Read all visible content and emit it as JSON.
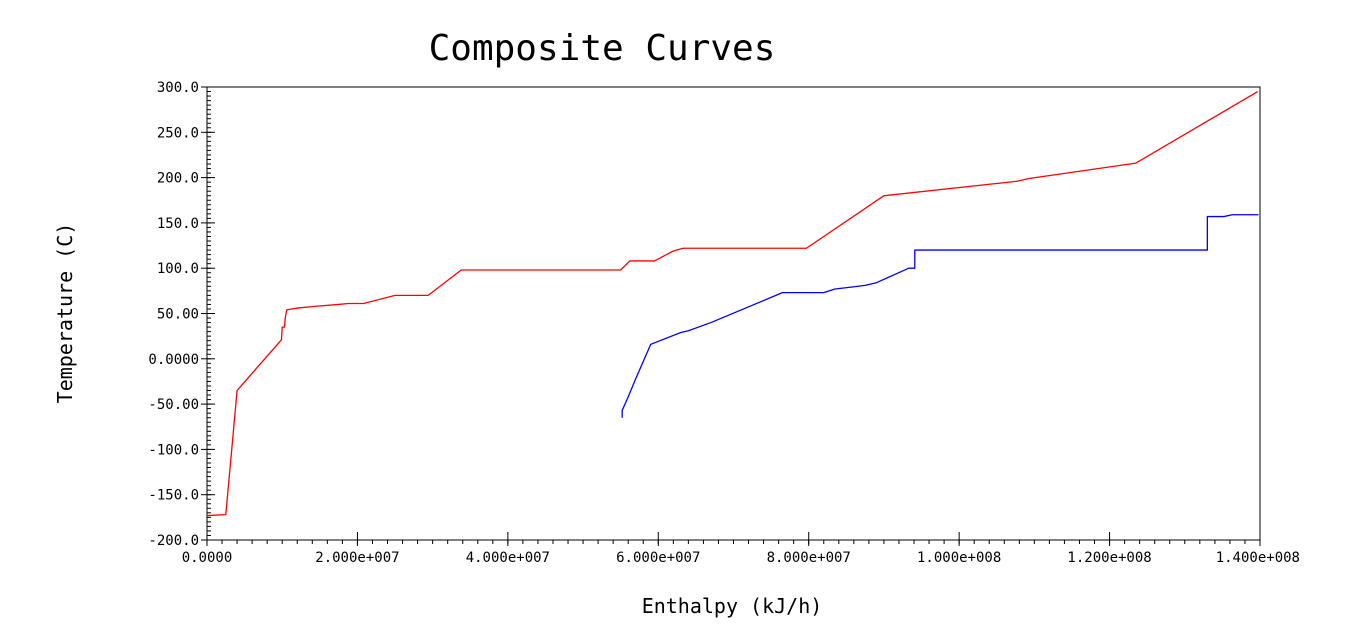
{
  "chart_data": {
    "type": "line",
    "title": "Composite Curves",
    "xlabel": "Enthalpy (kJ/h)",
    "ylabel": "Temperature (C)",
    "xlim": [
      0,
      140000000
    ],
    "ylim": [
      -200,
      300
    ],
    "x_ticks": [
      {
        "value": 0,
        "label": "0.0000"
      },
      {
        "value": 20000000,
        "label": "2.000e+007"
      },
      {
        "value": 40000000,
        "label": "4.000e+007"
      },
      {
        "value": 60000000,
        "label": "6.000e+007"
      },
      {
        "value": 80000000,
        "label": "8.000e+007"
      },
      {
        "value": 100000000,
        "label": "1.000e+008"
      },
      {
        "value": 120000000,
        "label": "1.200e+008"
      },
      {
        "value": 140000000,
        "label": "1.400e+008"
      }
    ],
    "y_ticks": [
      {
        "value": 300,
        "label": "300.0"
      },
      {
        "value": 250,
        "label": "250.0"
      },
      {
        "value": 200,
        "label": "200.0"
      },
      {
        "value": 150,
        "label": "150.0"
      },
      {
        "value": 100,
        "label": "100.0"
      },
      {
        "value": 50,
        "label": "50.00"
      },
      {
        "value": 0,
        "label": "0.0000"
      },
      {
        "value": -50,
        "label": "-50.00"
      },
      {
        "value": -100,
        "label": "-100.0"
      },
      {
        "value": -150,
        "label": "-150.0"
      },
      {
        "value": -200,
        "label": "-200.0"
      }
    ],
    "grid": false,
    "series": [
      {
        "color": "#ff0000",
        "points": [
          [
            0,
            -173
          ],
          [
            2500000,
            -172
          ],
          [
            4000000,
            -35
          ],
          [
            9900000,
            21
          ],
          [
            10000000,
            35
          ],
          [
            10300000,
            35
          ],
          [
            10400000,
            45
          ],
          [
            10600000,
            54
          ],
          [
            12000000,
            56
          ],
          [
            14500000,
            58
          ],
          [
            17500000,
            60
          ],
          [
            18800000,
            61
          ],
          [
            20800000,
            61
          ],
          [
            25000000,
            70
          ],
          [
            29400000,
            70
          ],
          [
            33800000,
            98
          ],
          [
            55000000,
            98
          ],
          [
            56200000,
            108
          ],
          [
            59500000,
            108
          ],
          [
            62000000,
            119
          ],
          [
            63300000,
            122
          ],
          [
            79700000,
            122
          ],
          [
            90000000,
            180
          ],
          [
            107700000,
            196
          ],
          [
            109300000,
            199
          ],
          [
            123500000,
            216
          ],
          [
            139700000,
            295
          ]
        ]
      },
      {
        "color": "#0000ff",
        "points": [
          [
            55200000,
            -65
          ],
          [
            55200000,
            -57
          ],
          [
            56000000,
            -42
          ],
          [
            57000000,
            -22
          ],
          [
            59000000,
            16
          ],
          [
            63000000,
            29
          ],
          [
            64000000,
            31
          ],
          [
            67000000,
            40
          ],
          [
            76500000,
            73
          ],
          [
            82000000,
            73
          ],
          [
            83500000,
            77
          ],
          [
            85500000,
            79
          ],
          [
            87500000,
            81
          ],
          [
            89000000,
            84
          ],
          [
            93300000,
            100
          ],
          [
            94100000,
            100
          ],
          [
            94100000,
            120
          ],
          [
            133000000,
            120
          ],
          [
            133000000,
            157
          ],
          [
            135200000,
            157
          ],
          [
            136300000,
            159
          ],
          [
            139800000,
            159
          ]
        ]
      }
    ]
  }
}
